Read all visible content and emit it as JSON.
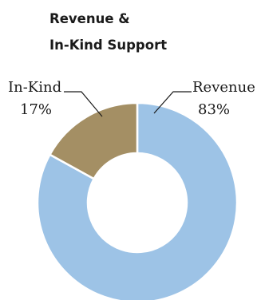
{
  "chart_data": {
    "type": "pie",
    "title_lines": [
      "Revenue &",
      "In-Kind Support"
    ],
    "hole": true,
    "slices": [
      {
        "label": "Revenue",
        "value": 83,
        "value_label": "83%",
        "color": "#9dc3e6"
      },
      {
        "label": "In-Kind",
        "value": 17,
        "value_label": "17%",
        "color": "#a48f64"
      }
    ]
  }
}
